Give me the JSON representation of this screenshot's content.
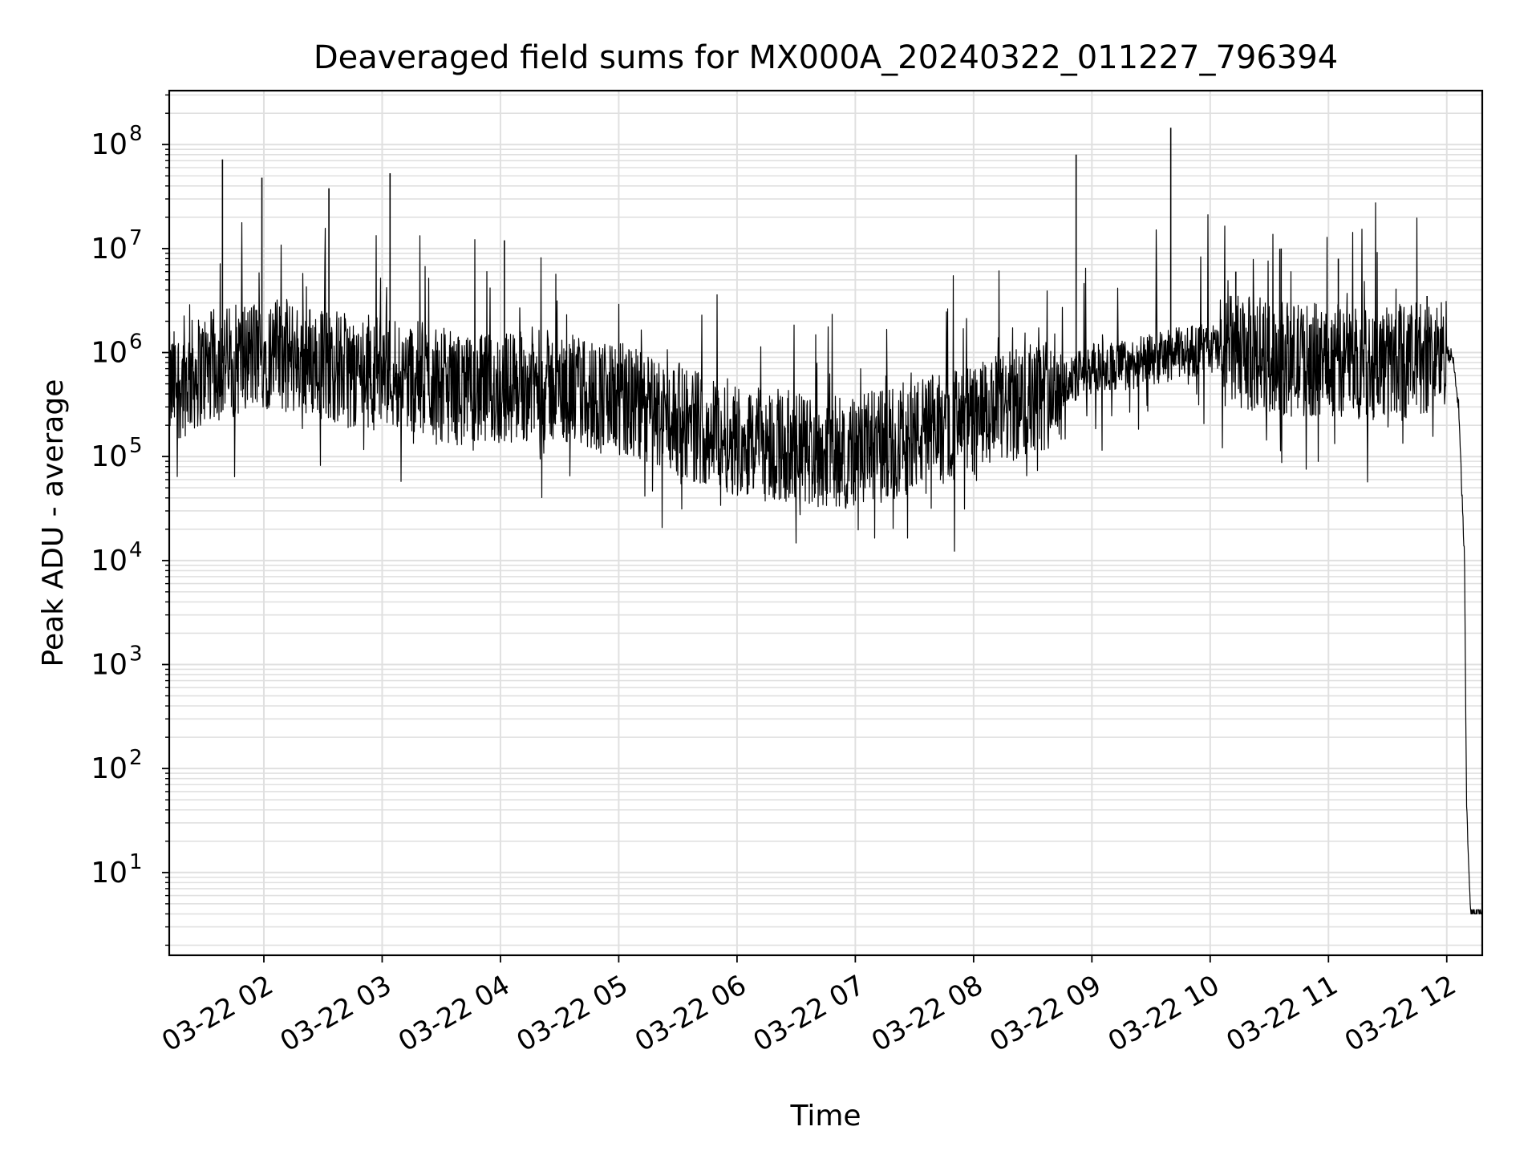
{
  "chart_data": {
    "type": "line",
    "title": "Deaveraged field sums for MX000A_20240322_011227_796394",
    "xlabel": "Time",
    "ylabel": "Peak ADU - average",
    "yscale": "log",
    "grid": true,
    "line_color": "#000000",
    "grid_color": "#e0e0e0",
    "xlim": [
      "2024-03-22 01:12",
      "2024-03-22 12:18"
    ],
    "ylim": [
      1.6,
      330000000
    ],
    "x_ticks": [
      {
        "time": "2024-03-22 02:00",
        "label": "03-22 02"
      },
      {
        "time": "2024-03-22 03:00",
        "label": "03-22 03"
      },
      {
        "time": "2024-03-22 04:00",
        "label": "03-22 04"
      },
      {
        "time": "2024-03-22 05:00",
        "label": "03-22 05"
      },
      {
        "time": "2024-03-22 06:00",
        "label": "03-22 06"
      },
      {
        "time": "2024-03-22 07:00",
        "label": "03-22 07"
      },
      {
        "time": "2024-03-22 08:00",
        "label": "03-22 08"
      },
      {
        "time": "2024-03-22 09:00",
        "label": "03-22 09"
      },
      {
        "time": "2024-03-22 10:00",
        "label": "03-22 10"
      },
      {
        "time": "2024-03-22 11:00",
        "label": "03-22 11"
      },
      {
        "time": "2024-03-22 12:00",
        "label": "03-22 12"
      }
    ],
    "y_ticks": [
      {
        "exp": 1,
        "base": "10",
        "sup": "1"
      },
      {
        "exp": 2,
        "base": "10",
        "sup": "2"
      },
      {
        "exp": 3,
        "base": "10",
        "sup": "3"
      },
      {
        "exp": 4,
        "base": "10",
        "sup": "4"
      },
      {
        "exp": 5,
        "base": "10",
        "sup": "5"
      },
      {
        "exp": 6,
        "base": "10",
        "sup": "6"
      },
      {
        "exp": 7,
        "base": "10",
        "sup": "7"
      },
      {
        "exp": 8,
        "base": "10",
        "sup": "8"
      }
    ],
    "series": [
      {
        "x": [
          "2024-03-22 01:12",
          "2024-03-22 01:20",
          "2024-03-22 01:30",
          "2024-03-22 01:40",
          "2024-03-22 01:50",
          "2024-03-22 02:00",
          "2024-03-22 02:15",
          "2024-03-22 02:30",
          "2024-03-22 02:45",
          "2024-03-22 03:00",
          "2024-03-22 03:15",
          "2024-03-22 03:30",
          "2024-03-22 03:45",
          "2024-03-22 04:00",
          "2024-03-22 04:15",
          "2024-03-22 04:30",
          "2024-03-22 04:45",
          "2024-03-22 05:00",
          "2024-03-22 05:15",
          "2024-03-22 05:30",
          "2024-03-22 05:45",
          "2024-03-22 06:00",
          "2024-03-22 06:15",
          "2024-03-22 06:30",
          "2024-03-22 06:45",
          "2024-03-22 07:00",
          "2024-03-22 07:15",
          "2024-03-22 07:30",
          "2024-03-22 07:45",
          "2024-03-22 08:00",
          "2024-03-22 08:15",
          "2024-03-22 08:30",
          "2024-03-22 08:45",
          "2024-03-22 09:00",
          "2024-03-22 09:15",
          "2024-03-22 09:30",
          "2024-03-22 09:45",
          "2024-03-22 10:00",
          "2024-03-22 10:15",
          "2024-03-22 10:30",
          "2024-03-22 10:45",
          "2024-03-22 11:00",
          "2024-03-22 11:15",
          "2024-03-22 11:30",
          "2024-03-22 11:45",
          "2024-03-22 12:00",
          "2024-03-22 12:03",
          "2024-03-22 12:06",
          "2024-03-22 12:09",
          "2024-03-22 12:10",
          "2024-03-22 12:12",
          "2024-03-22 12:18"
        ],
        "values": [
          450000,
          550000,
          700000,
          800000,
          900000,
          1000000,
          900000,
          800000,
          650000,
          700000,
          600000,
          500000,
          400000,
          450000,
          500000,
          450000,
          400000,
          350000,
          280000,
          230000,
          180000,
          150000,
          130000,
          120000,
          110000,
          110000,
          130000,
          160000,
          190000,
          220000,
          280000,
          350000,
          500000,
          700000,
          750000,
          850000,
          1000000,
          1100000,
          1000000,
          900000,
          850000,
          850000,
          800000,
          800000,
          850000,
          1000000,
          900000,
          300000,
          10000,
          50,
          4,
          4
        ],
        "spikes": [
          {
            "time": "2024-03-22 01:39",
            "value": 72000000
          },
          {
            "time": "2024-03-22 01:59",
            "value": 48000000
          },
          {
            "time": "2024-03-22 02:33",
            "value": 38000000
          },
          {
            "time": "2024-03-22 03:04",
            "value": 53000000
          },
          {
            "time": "2024-03-22 04:02",
            "value": 12000000
          },
          {
            "time": "2024-03-22 08:52",
            "value": 80000000
          },
          {
            "time": "2024-03-22 09:40",
            "value": 145000000
          },
          {
            "time": "2024-03-22 10:13",
            "value": 6000000
          },
          {
            "time": "2024-03-22 10:36",
            "value": 10000000
          },
          {
            "time": "2024-03-22 11:05",
            "value": 8000000
          },
          {
            "time": "2024-03-22 11:50",
            "value": 3500000
          }
        ]
      }
    ]
  }
}
